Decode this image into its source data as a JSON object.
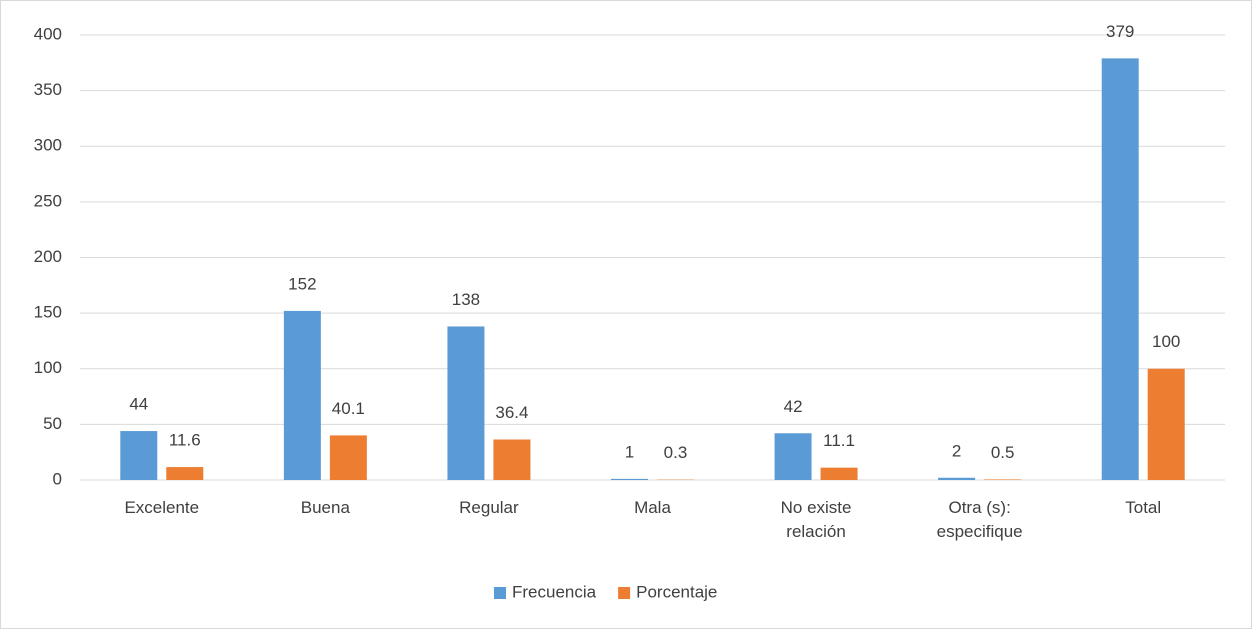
{
  "chart_data": {
    "type": "bar",
    "categories": [
      "Excelente",
      "Buena",
      "Regular",
      "Mala",
      "No existe relación",
      "Otra (s): especifique",
      "Total"
    ],
    "series": [
      {
        "name": "Frecuencia",
        "color": "#5b9bd5",
        "values": [
          44,
          152,
          138,
          1,
          42,
          2,
          379
        ]
      },
      {
        "name": "Porcentaje",
        "color": "#ed7d31",
        "values": [
          11.6,
          40.1,
          36.4,
          0.3,
          11.1,
          0.5,
          100
        ]
      }
    ],
    "ylim": [
      0,
      400
    ],
    "yticks": [
      0,
      50,
      100,
      150,
      200,
      250,
      300,
      350,
      400
    ],
    "grid": true,
    "legend": "bottom"
  }
}
